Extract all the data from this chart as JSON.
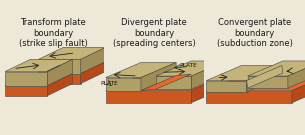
{
  "bg_color": "#ede8d8",
  "titles": [
    "Transform plate\nboundary\n(strike slip fault)",
    "Divergent plate\nboundary\n(spreading centers)",
    "Convergent plate\nboundary\n(subduction zone)"
  ],
  "title_fontsize": 6.0,
  "title_color": "#1a1a1a",
  "plate_top_color": "#c4b47a",
  "plate_side_color": "#9e8e55",
  "plate_front_color": "#b0a068",
  "mantle_top_color": "#e8682a",
  "mantle_side_color": "#b84818",
  "mantle_front_color": "#cc5820",
  "line_color": "#444444",
  "edge_lw": 0.4,
  "arrow_color": "#222222",
  "label_color": "#111111",
  "label_fontsize": 4.2
}
